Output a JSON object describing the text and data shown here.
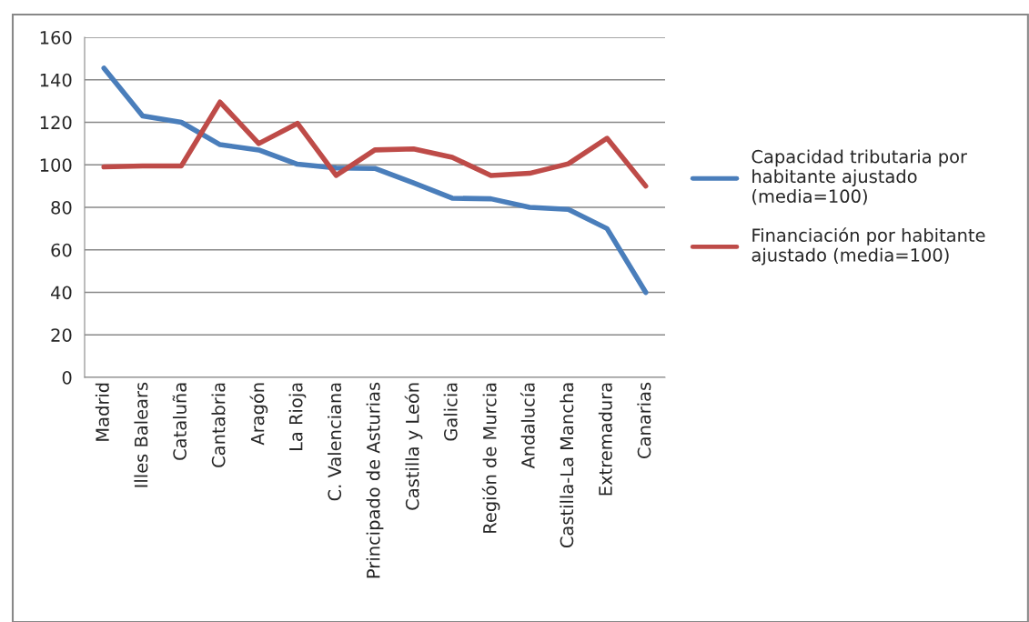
{
  "chart_data": {
    "type": "line",
    "categories": [
      "Madrid",
      "Illes Balears",
      "Cataluña",
      "Cantabria",
      "Aragón",
      "La Rioja",
      "C. Valenciana",
      "Principado de Asturias",
      "Castilla y León",
      "Galicia",
      "Región de Murcia",
      "Andalucía",
      "Castilla-La Mancha",
      "Extremadura",
      "Canarias"
    ],
    "series": [
      {
        "name": "Capacidad tributaria por habitante ajustado (media=100)",
        "color": "#4a7ebb",
        "values": [
          145.5,
          123,
          120,
          109.5,
          107,
          100.3,
          98.5,
          98.3,
          91.5,
          84.3,
          84,
          80,
          79,
          70,
          40
        ]
      },
      {
        "name": "Financiación por habitante ajustado (media=100)",
        "color": "#be4b48",
        "values": [
          99,
          99.5,
          99.5,
          129.5,
          110,
          119.5,
          95,
          107,
          107.5,
          103.5,
          95,
          96,
          100.5,
          112.5,
          90
        ]
      }
    ],
    "ylim": [
      0,
      160
    ],
    "yticks": [
      0,
      20,
      40,
      60,
      80,
      100,
      120,
      140,
      160
    ],
    "grid": "y",
    "legend": "right",
    "marker": "none",
    "line_style": "solid"
  }
}
